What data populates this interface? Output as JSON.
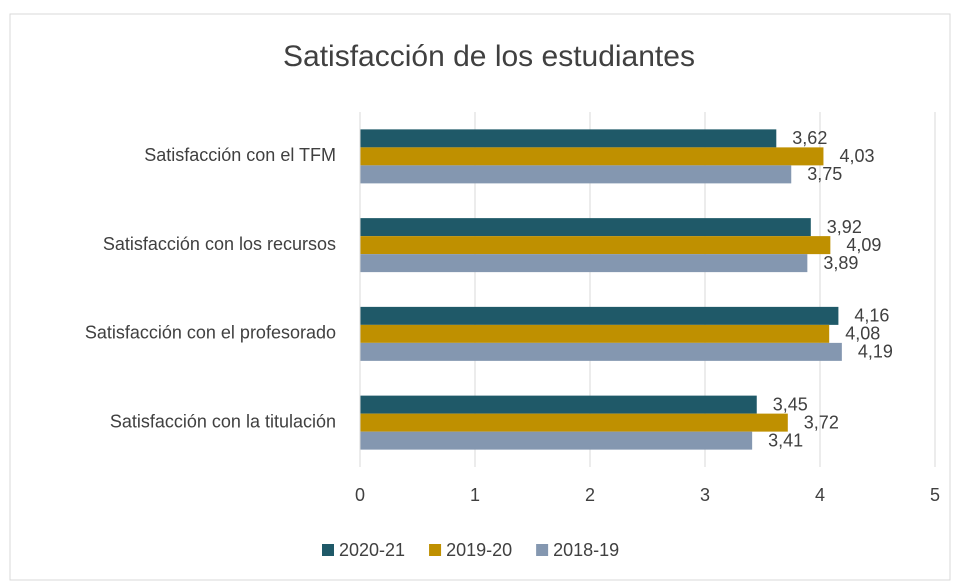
{
  "chart_data": {
    "type": "hbar",
    "title": "Satisfacción de los estudiantes",
    "categories": [
      "Satisfacción  con el TFM",
      "Satisfacción  con los recursos",
      "Satisfacción  con el profesorado",
      "Satisfacción con la titulación"
    ],
    "series": [
      {
        "name": "2020-21",
        "color": "#1f5968",
        "values": [
          3.62,
          3.92,
          4.16,
          3.45
        ],
        "value_labels": [
          "3,62",
          "3,92",
          "4,16",
          "3,45"
        ]
      },
      {
        "name": "2019-20",
        "color": "#bf9000",
        "values": [
          4.03,
          4.09,
          4.08,
          3.72
        ],
        "value_labels": [
          "4,03",
          "4,09",
          "4,08",
          "3,72"
        ]
      },
      {
        "name": "2018-19",
        "color": "#8497b0",
        "values": [
          3.75,
          3.89,
          4.19,
          3.41
        ],
        "value_labels": [
          "3,75",
          "3,89",
          "4,19",
          "3,41"
        ]
      }
    ],
    "xlim": [
      0,
      5
    ],
    "xticks": [
      0,
      1,
      2,
      3,
      4,
      5
    ],
    "grid": true,
    "legend": "bottom"
  }
}
